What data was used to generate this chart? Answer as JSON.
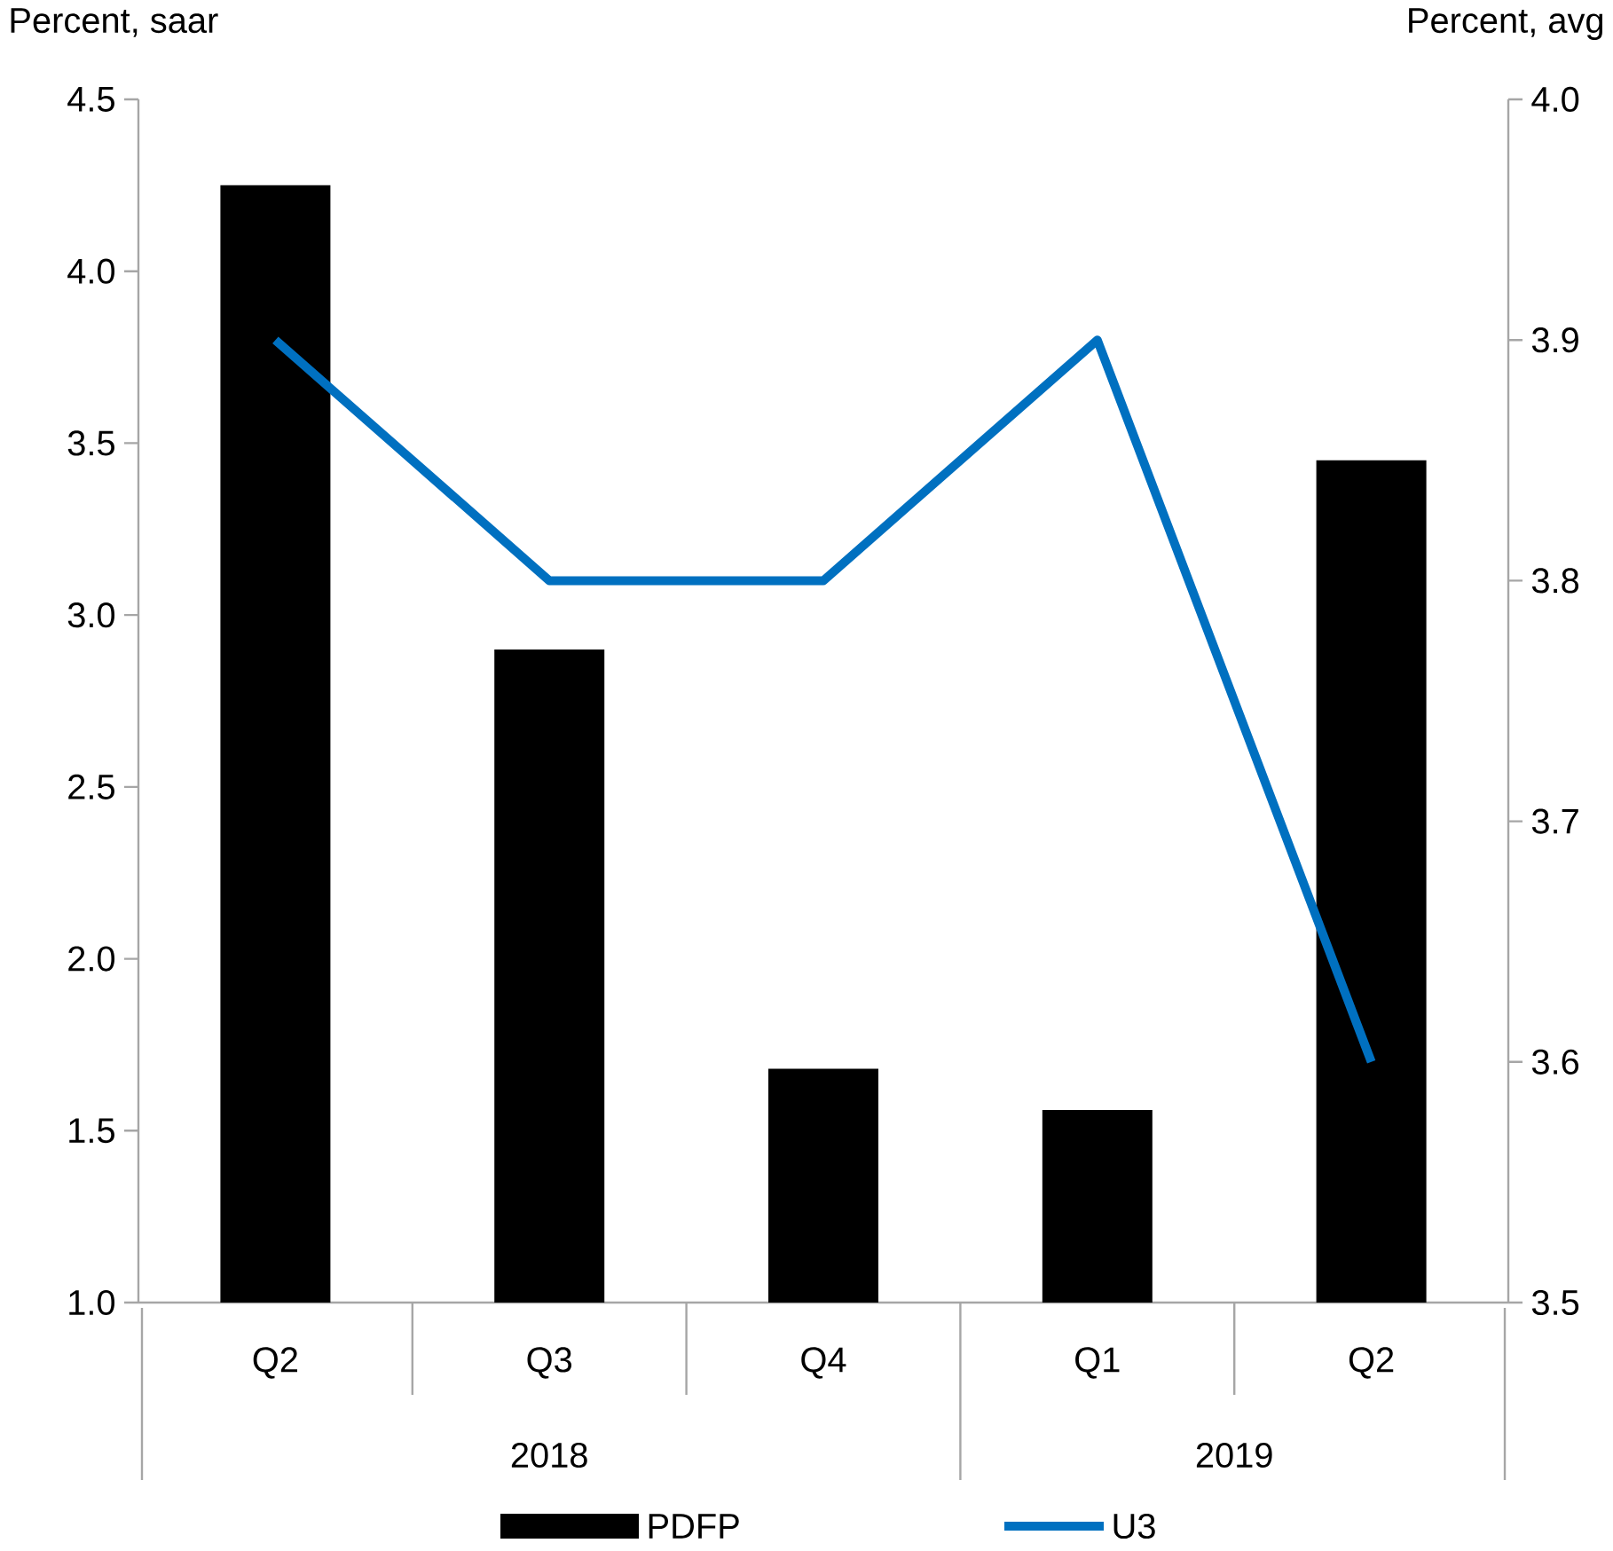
{
  "chart_data": {
    "type": "bar",
    "ylabel": "Percent, saar",
    "y2label": "Percent, avg",
    "categories": [
      "Q2",
      "Q3",
      "Q4",
      "Q1",
      "Q2"
    ],
    "annotations": [
      "2018",
      "2019"
    ],
    "series": [
      {
        "name": "PDFP",
        "color": "#000000",
        "values": [
          4.25,
          2.9,
          1.68,
          1.56,
          3.45
        ]
      },
      {
        "name": "U3",
        "type": "line",
        "axis": "y2",
        "color": "#0070c0",
        "values": [
          3.9,
          3.8,
          3.8,
          3.9,
          3.6
        ]
      }
    ],
    "ylim": [
      1.0,
      4.5
    ],
    "yticks": [
      {
        "value": 1.0,
        "label": "1.0"
      },
      {
        "value": 1.5,
        "label": "1.5"
      },
      {
        "value": 2.0,
        "label": "2.0"
      },
      {
        "value": 2.5,
        "label": "2.5"
      },
      {
        "value": 3.0,
        "label": "3.0"
      },
      {
        "value": 3.5,
        "label": "3.5"
      },
      {
        "value": 4.0,
        "label": "4.0"
      },
      {
        "value": 4.5,
        "label": "4.5"
      }
    ],
    "y2lim": [
      3.5,
      4.0
    ],
    "y2ticks": [
      {
        "value": 3.5,
        "label": "3.5"
      },
      {
        "value": 3.6,
        "label": "3.6"
      },
      {
        "value": 3.7,
        "label": "3.7"
      },
      {
        "value": 3.8,
        "label": "3.8"
      },
      {
        "value": 3.9,
        "label": "3.9"
      },
      {
        "value": 4.0,
        "label": "4.0"
      }
    ],
    "legend": "bottom",
    "marker": "none",
    "line_style": "solid",
    "grid": false
  }
}
